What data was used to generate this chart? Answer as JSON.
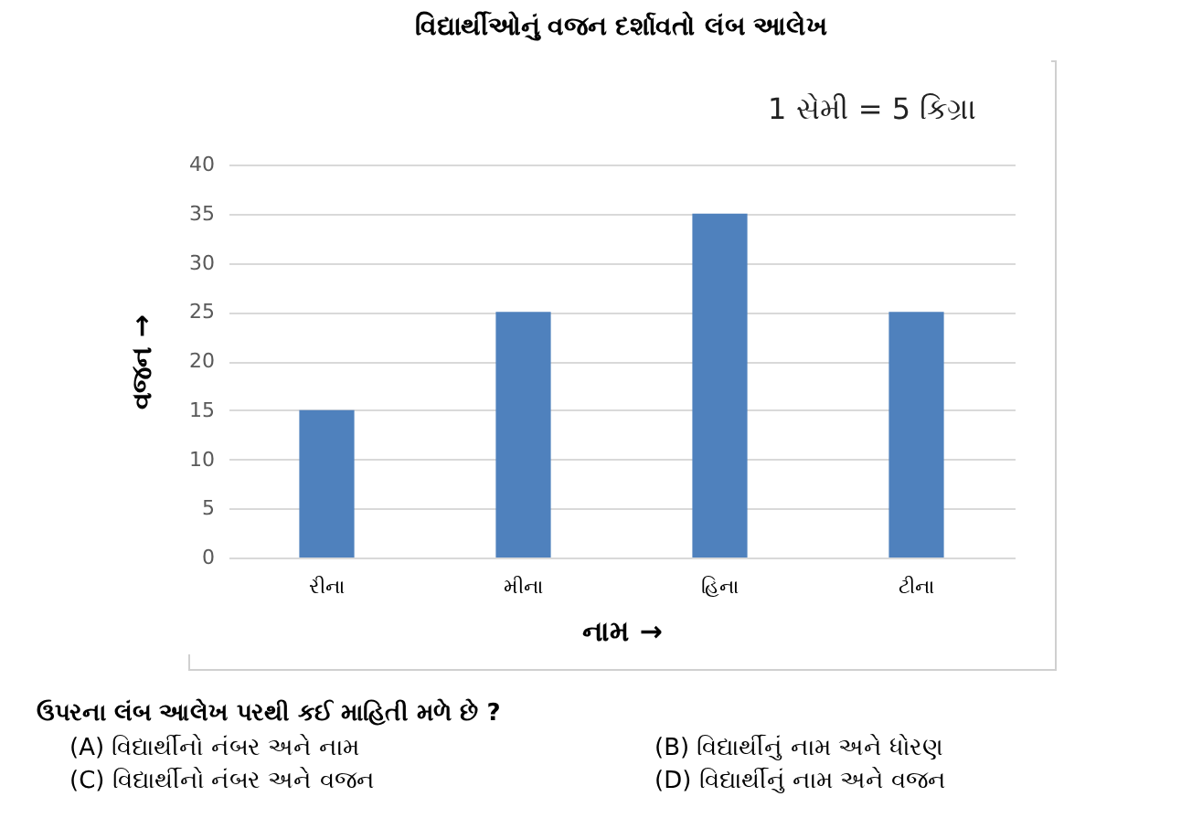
{
  "chart_data": {
    "type": "bar",
    "title": "વિદ્યાર્થીઓનું વજન દર્શાવતો લંબ આલેખ",
    "xlabel": "નામ →",
    "ylabel": "વજન →",
    "categories": [
      "રીના",
      "મીના",
      "હિના",
      "ટીના"
    ],
    "values": [
      15,
      25,
      35,
      25
    ],
    "color": "#4f81bd",
    "ylim": [
      0,
      40
    ],
    "yticks": [
      0,
      5,
      10,
      15,
      20,
      25,
      30,
      35,
      40
    ],
    "grid": "y",
    "annotations": [
      "1 સેમી = 5 કિગ્રા",
      "ઉપરના લંબ આલેખ પરથી કઈ માહિતી મળે છે ?",
      "(A) વિદ્યાર્થીનો નંબર અને નામ",
      "(B) વિદ્યાર્થીનું નામ અને ધોરણ",
      "(C) વિદ્યાર્થીનો નંબર અને વજન",
      "(D) વિદ્યાર્થીનું નામ અને વજન"
    ]
  }
}
